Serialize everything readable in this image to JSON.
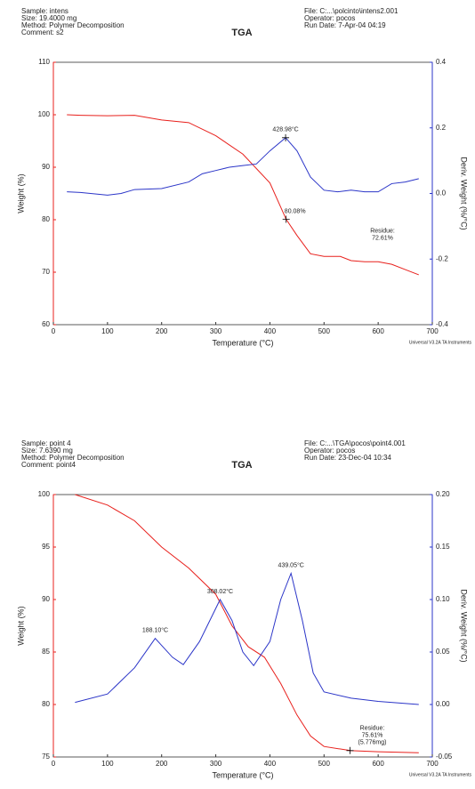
{
  "chart_data": [
    {
      "type": "line",
      "title": "TGA",
      "header_left": [
        "Sample: intens",
        "Size:  19.4000 mg",
        "Method: Polymer Decomposition",
        "Comment: s2"
      ],
      "header_right": [
        "File: C:...\\polcinto\\intens2.001",
        "Operator: pocos",
        "Run Date: 7-Apr-04 04:19"
      ],
      "xlabel": "Temperature (°C)",
      "ylabel": "Weight (%)",
      "y2label": "Deriv. Weight (%/°C)",
      "footer": "Universal V3.2A TA Instruments",
      "xlim": [
        0,
        700
      ],
      "xticks": [
        0,
        100,
        200,
        300,
        400,
        500,
        600,
        700
      ],
      "ylim": [
        60,
        110
      ],
      "yticks": [
        60,
        70,
        80,
        90,
        100,
        110
      ],
      "y2lim": [
        -0.4,
        0.4
      ],
      "y2ticks": [
        -0.4,
        -0.2,
        {
          "value": 0,
          "label": "0.0"
        },
        0.2,
        0.4
      ],
      "series": [
        {
          "color": "#e8201c",
          "x": [
            25,
            50,
            100,
            150,
            200,
            250,
            300,
            350,
            400,
            430,
            450,
            475,
            500,
            530,
            550,
            575,
            600,
            625,
            650,
            675
          ],
          "values": [
            100,
            99.9,
            99.8,
            99.9,
            99,
            98.5,
            96,
            92.5,
            87,
            80.08,
            77,
            73.5,
            73,
            73,
            72.2,
            72,
            72,
            71.5,
            70.5,
            69.5
          ]
        },
        {
          "color": "#2b35c8",
          "axis": "y2",
          "x": [
            25,
            50,
            100,
            125,
            150,
            200,
            250,
            275,
            300,
            325,
            350,
            375,
            400,
            428.98,
            450,
            475,
            500,
            525,
            550,
            575,
            600,
            625,
            650,
            675
          ],
          "values": [
            0.005,
            0.003,
            -0.005,
            0,
            0.012,
            0.015,
            0.035,
            0.06,
            0.07,
            0.08,
            0.085,
            0.09,
            0.13,
            0.17,
            0.13,
            0.05,
            0.01,
            0.005,
            0.01,
            0.005,
            0.005,
            0.03,
            0.035,
            0.045
          ]
        }
      ],
      "annotations": [
        {
          "lines": [
            "428.98°C"
          ],
          "x": 428.98,
          "y": 0.17,
          "axis": "y2",
          "marker": true
        },
        {
          "lines": [
            "80.08%"
          ],
          "x": 430,
          "y": 80.08,
          "axis": "y",
          "marker": true
        },
        {
          "lines": [
            "Residue:",
            "72.61%"
          ],
          "x": 608,
          "y": 75,
          "axis": "y",
          "marker": false
        }
      ]
    },
    {
      "type": "line",
      "title": "TGA",
      "header_left": [
        "Sample: point 4",
        "Size:  7.6390 mg",
        "Method: Polymer Decomposition",
        "Comment: point4"
      ],
      "header_right": [
        "File: C:...\\TGA\\pocos\\point4.001",
        "Operator: pocos",
        "Run Date: 23-Dec-04 10:34"
      ],
      "xlabel": "Temperature (°C)",
      "ylabel": "Weight (%)",
      "y2label": "Deriv. Weight (%/°C)",
      "footer": "Universal V3.2A TA Instruments",
      "xlim": [
        0,
        700
      ],
      "xticks": [
        0,
        100,
        200,
        300,
        400,
        500,
        600,
        700
      ],
      "ylim": [
        75,
        100
      ],
      "yticks": [
        75,
        80,
        85,
        90,
        95,
        100
      ],
      "y2lim": [
        -0.05,
        0.2
      ],
      "y2ticks": [
        -0.05,
        {
          "value": 0,
          "label": "0.00"
        },
        0.05,
        {
          "value": 0.1,
          "label": "0.10"
        },
        0.15,
        {
          "value": 0.2,
          "label": "0.20"
        }
      ],
      "series": [
        {
          "color": "#e8201c",
          "x": [
            40,
            100,
            150,
            200,
            250,
            300,
            330,
            360,
            390,
            420,
            450,
            475,
            500,
            550,
            600,
            675
          ],
          "values": [
            100,
            99,
            97.5,
            95,
            93,
            90.5,
            87.5,
            85.5,
            84.5,
            82,
            79,
            77,
            76,
            75.6,
            75.5,
            75.4
          ]
        },
        {
          "color": "#2b35c8",
          "axis": "y2",
          "x": [
            40,
            100,
            150,
            188.1,
            220,
            240,
            270,
            308.02,
            330,
            350,
            370,
            400,
            420,
            439.05,
            460,
            480,
            500,
            550,
            600,
            675
          ],
          "values": [
            0.002,
            0.01,
            0.035,
            0.063,
            0.045,
            0.038,
            0.06,
            0.1,
            0.08,
            0.05,
            0.037,
            0.06,
            0.1,
            0.125,
            0.08,
            0.03,
            0.012,
            0.006,
            0.003,
            0
          ]
        }
      ],
      "annotations": [
        {
          "lines": [
            "188.10°C"
          ],
          "x": 188.1,
          "y": 0.063,
          "axis": "y2",
          "marker": false
        },
        {
          "lines": [
            "308.02°C"
          ],
          "x": 308.02,
          "y": 0.1,
          "axis": "y2",
          "marker": false
        },
        {
          "lines": [
            "439.05°C"
          ],
          "x": 439.05,
          "y": 0.125,
          "axis": "y2",
          "marker": false
        },
        {
          "lines": [
            "Residue:",
            "75.61%",
            "(5.776mg)"
          ],
          "x": 548,
          "y": 75.61,
          "axis": "y",
          "marker": true
        }
      ]
    }
  ]
}
